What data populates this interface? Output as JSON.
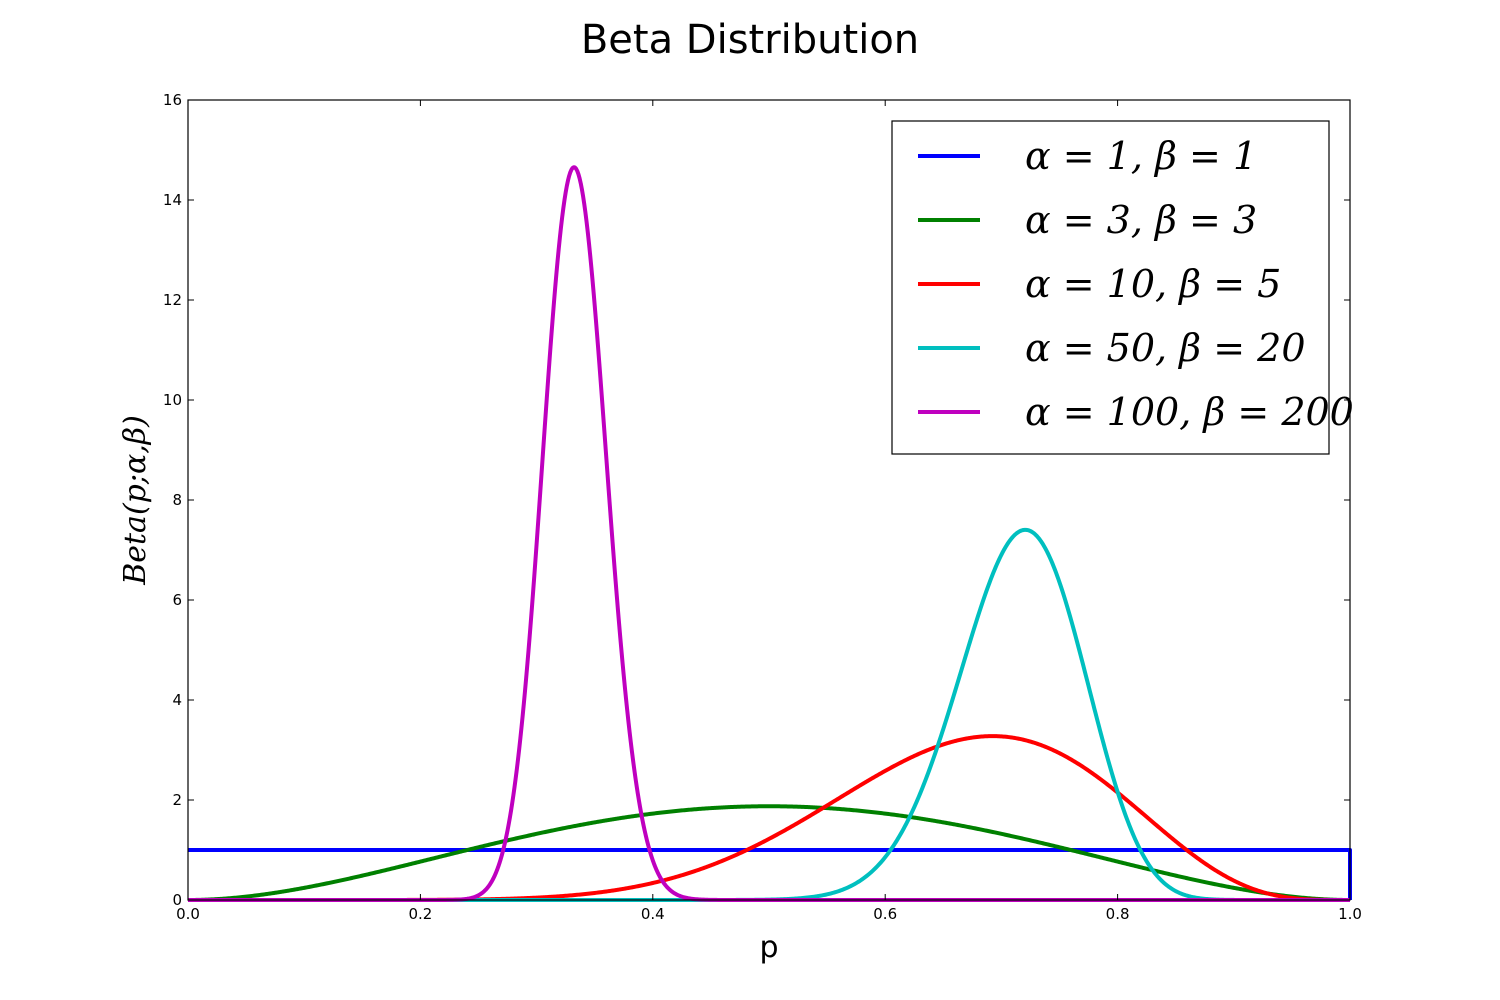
{
  "chart_data": {
    "type": "line",
    "title": "Beta Distribution",
    "xlabel": "p",
    "ylabel": "Beta(p;α,β)",
    "xlim": [
      0,
      1
    ],
    "ylim": [
      0,
      16
    ],
    "xticks": [
      "0.0",
      "0.2",
      "0.4",
      "0.6",
      "0.8",
      "1.0"
    ],
    "yticks": [
      "0",
      "2",
      "4",
      "6",
      "8",
      "10",
      "12",
      "14",
      "16"
    ],
    "grid": false,
    "legend_position": "top-right",
    "series": [
      {
        "name": "α = 1, β = 1",
        "alpha": 1,
        "beta": 1,
        "color": "#0000ff",
        "x": [
          0.0,
          0.25,
          0.5,
          0.75,
          1.0
        ],
        "y": [
          1.0,
          1.0,
          1.0,
          1.0,
          1.0
        ]
      },
      {
        "name": "α = 3, β = 3",
        "alpha": 3,
        "beta": 3,
        "color": "#008000",
        "x": [
          0.0,
          0.1,
          0.2,
          0.3,
          0.4,
          0.5,
          0.6,
          0.7,
          0.8,
          0.9,
          1.0
        ],
        "y": [
          0.0,
          0.24,
          0.77,
          1.32,
          1.73,
          1.88,
          1.73,
          1.32,
          0.77,
          0.24,
          0.0
        ]
      },
      {
        "name": "α = 10, β = 5",
        "alpha": 10,
        "beta": 5,
        "color": "#ff0000",
        "x": [
          0.0,
          0.3,
          0.4,
          0.5,
          0.6,
          0.65,
          0.7,
          0.75,
          0.8,
          0.85,
          0.9,
          1.0
        ],
        "y": [
          0.0,
          0.07,
          0.35,
          1.22,
          2.6,
          3.12,
          3.28,
          2.96,
          2.23,
          1.27,
          0.46,
          0.0
        ]
      },
      {
        "name": "α = 50, β = 20",
        "alpha": 50,
        "beta": 20,
        "color": "#00bfbf",
        "x": [
          0.5,
          0.55,
          0.6,
          0.65,
          0.7,
          0.72,
          0.75,
          0.8,
          0.85,
          0.9
        ],
        "y": [
          0.01,
          0.2,
          1.3,
          4.4,
          7.2,
          7.4,
          6.9,
          3.6,
          0.8,
          0.05
        ]
      },
      {
        "name": "α = 100, β = 200",
        "alpha": 100,
        "beta": 200,
        "color": "#bf00bf",
        "x": [
          0.2,
          0.25,
          0.28,
          0.3,
          0.33,
          0.36,
          0.38,
          0.4,
          0.45
        ],
        "y": [
          0.0,
          0.3,
          4.4,
          9.7,
          14.6,
          9.7,
          4.4,
          1.3,
          0.0
        ]
      }
    ]
  }
}
